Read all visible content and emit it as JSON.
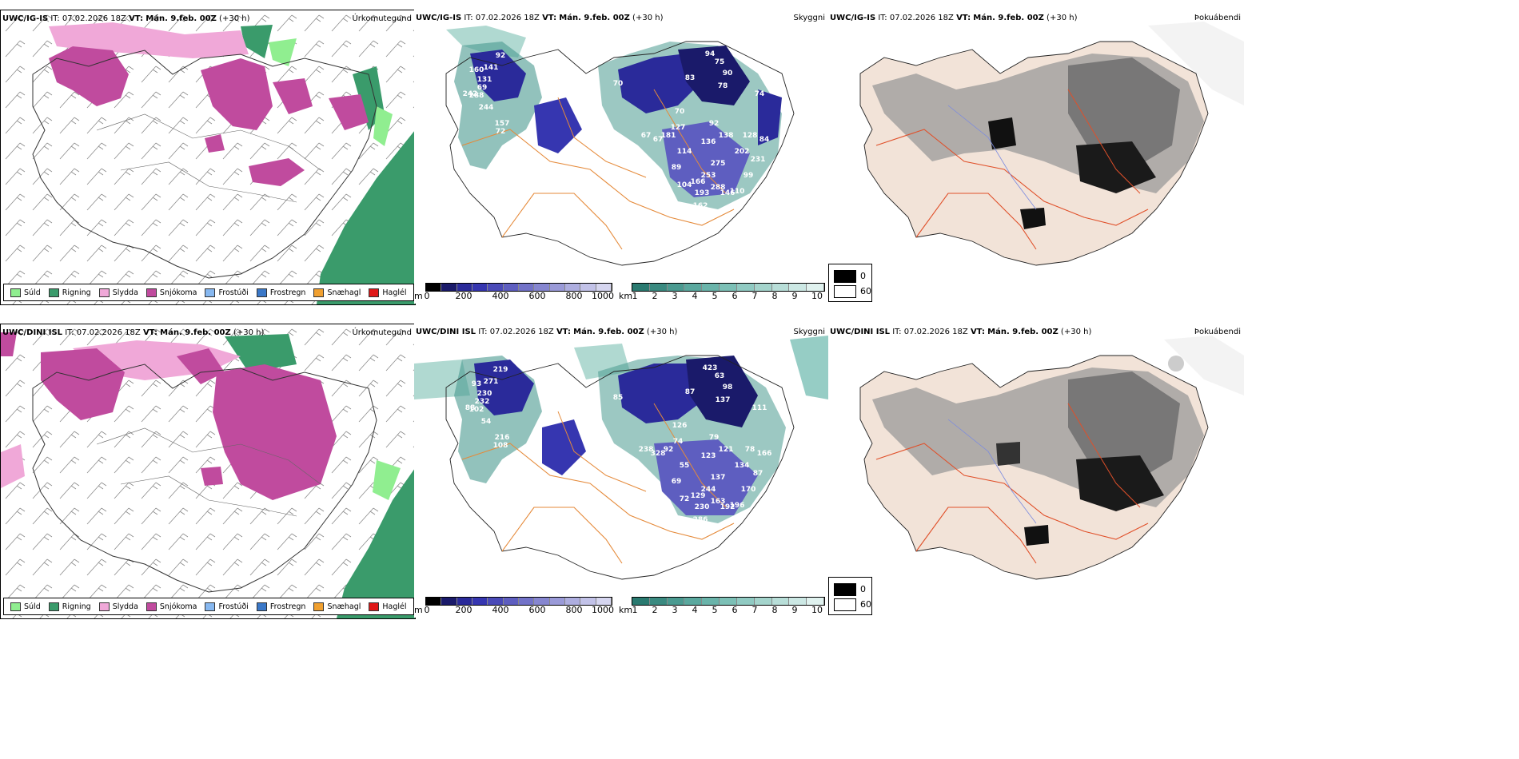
{
  "rows": [
    {
      "model": "UWC/IG-IS",
      "it_label": "IT:",
      "it_value": "07.02.2026 18Z",
      "vt_label": "VT:",
      "vt_value": "Mán. 9.feb. 00Z",
      "lead": "(+30 h)"
    },
    {
      "model": "UWC/DINI ISL",
      "it_label": "IT:",
      "it_value": "07.02.2026 18Z",
      "vt_label": "VT:",
      "vt_value": "Mán. 9.feb. 00Z",
      "lead": "(+30 h)"
    }
  ],
  "panel_titles": {
    "precip_type": "Úrkomutegund",
    "cloud": "Skyggni",
    "fog": "Þokuábendi"
  },
  "precip_legend": [
    {
      "label": "Súld",
      "color": "#90ee90"
    },
    {
      "label": "Rigning",
      "color": "#3a9b6b"
    },
    {
      "label": "Slydda",
      "color": "#f0a8d8"
    },
    {
      "label": "Snjókoma",
      "color": "#c04b9e"
    },
    {
      "label": "Frostúði",
      "color": "#87b8f0"
    },
    {
      "label": "Frostregn",
      "color": "#3a78c8"
    },
    {
      "label": "Snæhagl",
      "color": "#f0a030"
    },
    {
      "label": "Haglél",
      "color": "#e01818"
    }
  ],
  "ceiling_colorbar": {
    "unit": "m",
    "ticks": [
      "0",
      "200",
      "400",
      "600",
      "800",
      "1000"
    ],
    "colors": [
      "#000000",
      "#1a1a6a",
      "#2a2a9a",
      "#3636b0",
      "#4a4ab8",
      "#5e5ec0",
      "#7272c8",
      "#8686d0",
      "#9a9ad8",
      "#aeaee0",
      "#c2c2e8",
      "#d6d6f0"
    ]
  },
  "visibility_colorbar": {
    "unit": "km",
    "ticks": [
      "1",
      "2",
      "3",
      "4",
      "5",
      "6",
      "7",
      "8",
      "9",
      "10"
    ],
    "colors": [
      "#2a7a70",
      "#3a8a80",
      "#4a9a90",
      "#5aa89e",
      "#6ab4aa",
      "#7cc0b6",
      "#90cac2",
      "#a4d4cc",
      "#b8ded8",
      "#cce8e4",
      "#e0f2ef"
    ]
  },
  "fog_legend": {
    "low": "0",
    "high": "60"
  },
  "cloud_labels": [
    [
      "94",
      "75",
      "90",
      "83",
      "78",
      "70",
      "128",
      "92",
      "136",
      "202",
      "275",
      "253",
      "166",
      "193",
      "162",
      "288",
      "146",
      "110",
      "99",
      "84",
      "74",
      "104",
      "89",
      "114",
      "181",
      "67",
      "70",
      "141",
      "92",
      "160",
      "131",
      "69",
      "288",
      "242",
      "244",
      "157",
      "72",
      "58",
      "67",
      "138",
      "231",
      "127"
    ],
    [
      "423",
      "63",
      "98",
      "87",
      "137",
      "126",
      "78",
      "79",
      "123",
      "134",
      "137",
      "244",
      "129",
      "230",
      "286",
      "163",
      "192",
      "196",
      "170",
      "166",
      "111",
      "72",
      "69",
      "55",
      "92",
      "328",
      "85",
      "271",
      "219",
      "93",
      "230",
      "232",
      "102",
      "88",
      "54",
      "216",
      "108",
      "215",
      "238",
      "121",
      "87",
      "74"
    ]
  ]
}
